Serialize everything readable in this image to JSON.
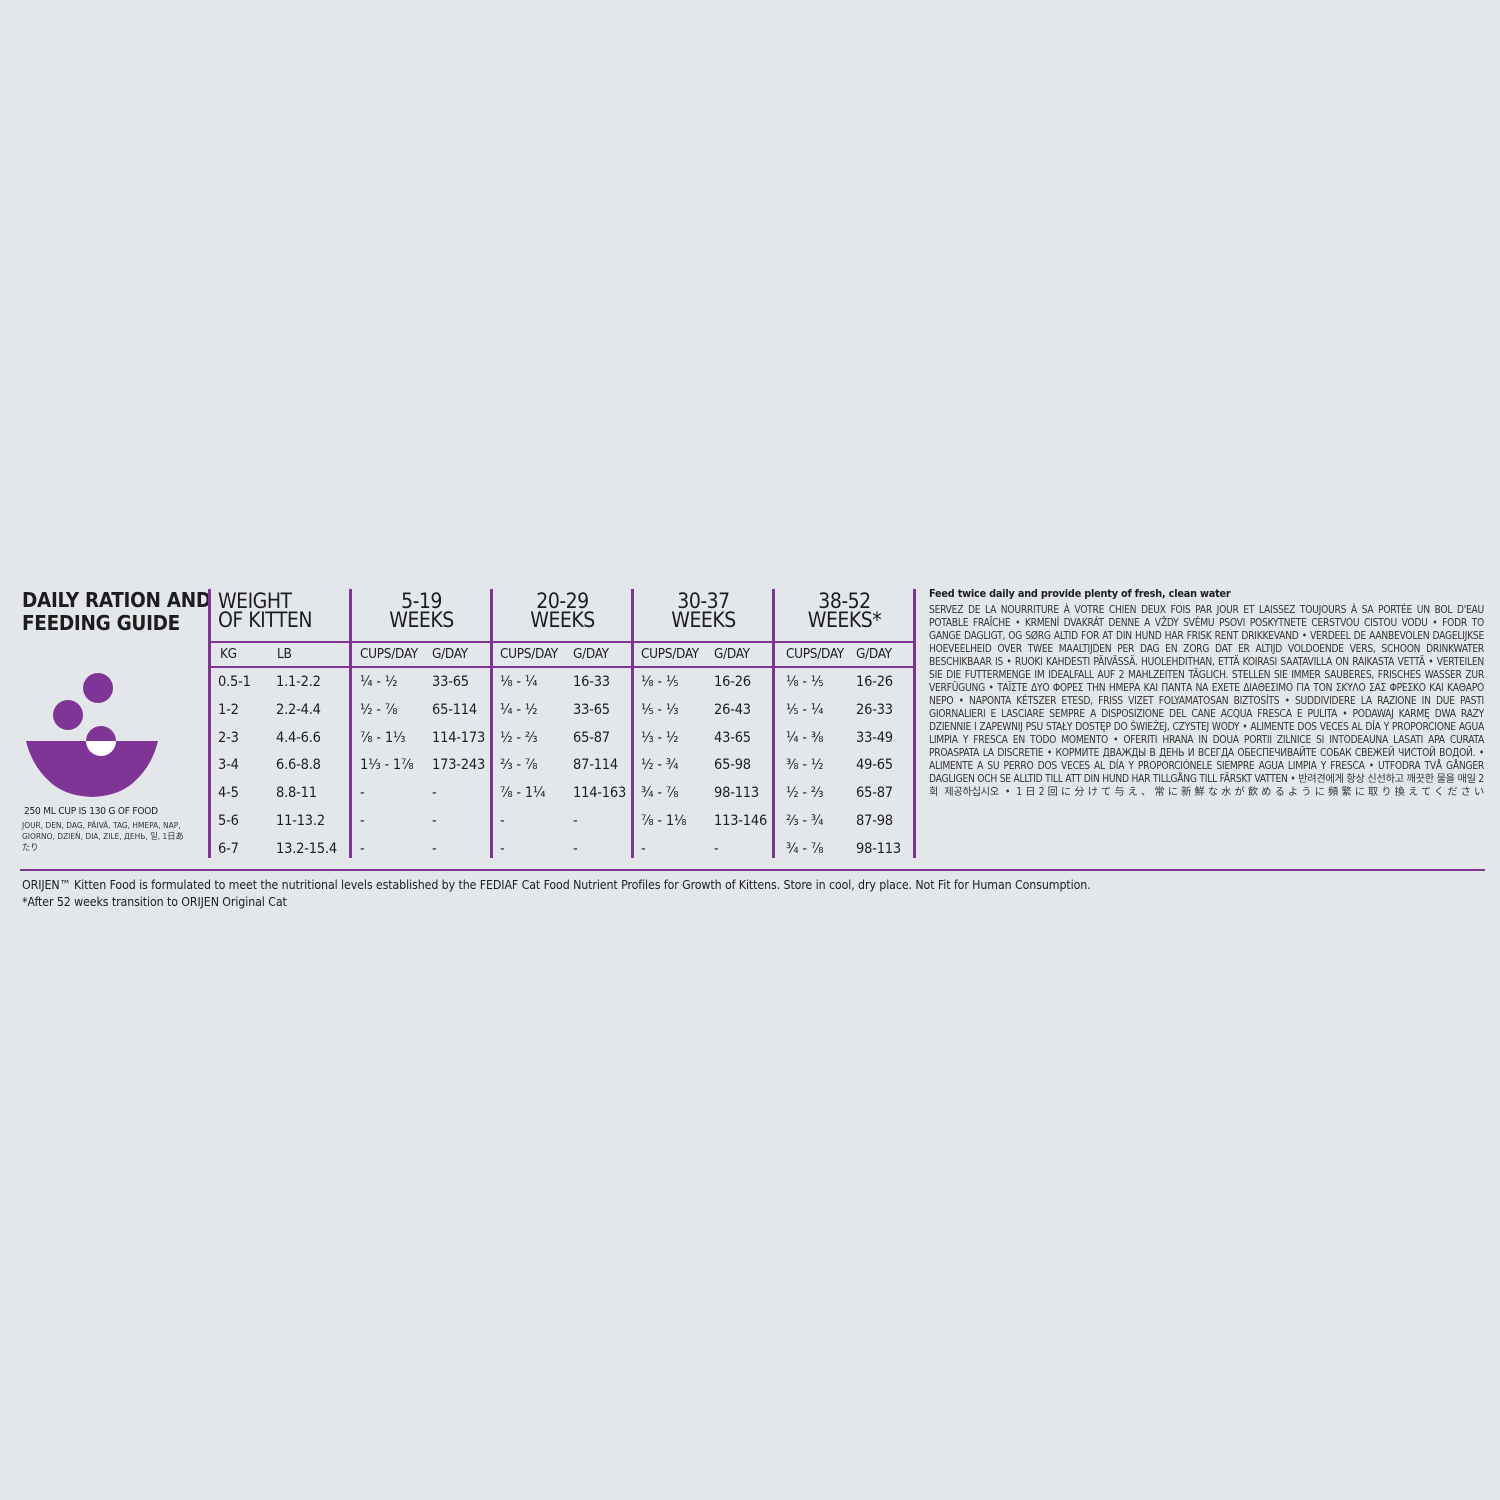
{
  "title": [
    "DAILY RATION AND",
    "FEEDING GUIDE"
  ],
  "accent_color": "#7f3596",
  "icon": "bowl-with-food-icon",
  "cup_note": "250 ML CUP IS 130 G OF FOOD",
  "day_words": "JOUR, DEN, DAG, PÄIVÄ, TAG, HMEPA, NAP, GIORNO, DZIEŃ, DIA, ZILE, ДЕНЬ, 일, 1日あたり",
  "weight_header": [
    "WEIGHT",
    "OF KITTEN"
  ],
  "weight_sub": {
    "kg": "KG",
    "lb": "LB"
  },
  "weights": [
    {
      "kg": "0.5-1",
      "lb": "1.1-2.2"
    },
    {
      "kg": "1-2",
      "lb": "2.2-4.4"
    },
    {
      "kg": "2-3",
      "lb": "4.4-6.6"
    },
    {
      "kg": "3-4",
      "lb": "6.6-8.8"
    },
    {
      "kg": "4-5",
      "lb": "8.8-11"
    },
    {
      "kg": "5-6",
      "lb": "11-13.2"
    },
    {
      "kg": "6-7",
      "lb": "13.2-15.4"
    }
  ],
  "sub_labels": {
    "cups": "CUPS/DAY",
    "g": "G/DAY"
  },
  "age_groups": [
    {
      "range": "5-19",
      "unit": "WEEKS",
      "cups": [
        "¼ - ½",
        "½ - ⅞",
        "⅞ - 1⅓",
        "1⅓ - 1⅞",
        "-",
        "-",
        "-"
      ],
      "g": [
        "33-65",
        "65-114",
        "114-173",
        "173-243",
        "-",
        "-",
        "-"
      ]
    },
    {
      "range": "20-29",
      "unit": "WEEKS",
      "cups": [
        "⅛ - ¼",
        "¼ - ½",
        "½ - ⅔",
        "⅔ - ⅞",
        "⅞ - 1¼",
        "-",
        "-"
      ],
      "g": [
        "16-33",
        "33-65",
        "65-87",
        "87-114",
        "114-163",
        "-",
        "-"
      ]
    },
    {
      "range": "30-37",
      "unit": "WEEKS",
      "cups": [
        "⅛ - ⅕",
        "⅕ - ⅓",
        "⅓ - ½",
        "½ - ¾",
        "¾ - ⅞",
        "⅞ - 1⅛",
        "-"
      ],
      "g": [
        "16-26",
        "26-43",
        "43-65",
        "65-98",
        "98-113",
        "113-146",
        "-"
      ]
    },
    {
      "range": "38-52",
      "unit": "WEEKS*",
      "cups": [
        "⅛ - ⅕",
        "⅕ - ¼",
        "¼ - ⅜",
        "⅜ - ½",
        "½ - ⅔",
        "⅔ - ¾",
        "¾ - ⅞"
      ],
      "g": [
        "16-26",
        "26-33",
        "33-49",
        "49-65",
        "65-87",
        "87-98",
        "98-113"
      ]
    }
  ],
  "instructions_title": "Feed twice daily and provide plenty of fresh, clean water",
  "instructions_translations": "SERVEZ DE LA NOURRITURE À VOTRE CHIEN DEUX FOIS PAR JOUR ET LAISSEZ TOUJOURS À SA PORTÉE UN BOL D'EAU POTABLE FRAÎCHE • KRMENÍ DVAKRÁT DENNE A VŽDY SVÉMU PSOVI POSKYTNETE CERSTVOU CISTOU VODU • FODR TO GANGE DAGLIGT, OG SØRG ALTID FOR AT DIN HUND HAR FRISK RENT DRIKKEVAND • VERDEEL DE AANBEVOLEN DAGELIJKSE HOEVEELHEID OVER TWEE MAALTIJDEN PER DAG EN ZORG DAT ER ALTIJD VOLDOENDE VERS, SCHOON DRINKWATER BESCHIKBAAR IS • RUOKI KAHDESTI PÄIVÄSSÄ. HUOLEHDITHAN, ETTÄ KOIRASI SAATAVILLA ON RAIKASTA VETTÄ • VERTEILEN SIE DIE FUTTERMENGE IM IDEALFALL AUF 2 MAHLZEITEN TÄGLICH. STELLEN SIE IMMER SAUBERES, FRISCHES WASSER ZUR VERFÜGUNG • ΤΑΪΣΤΕ ΔΥΟ ΦΟΡΕΣ ΤΗΝ ΗΜΕΡΑ ΚΑΙ ΠΑΝΤΑ ΝΑ ΕΧΕΤΕ ΔΙΑΘΕΣΙΜΟ ΓΙΑ ΤΟΝ ΣΚΥΛΟ ΣΑΣ ΦΡΕΣΚΟ ΚΑΙ ΚΑΘΑΡΟ ΝΕΡΟ • NAPONTA KÉTSZER ETESD, FRISS VIZET FOLYAMATOSAN BIZTOSÍTS • SUDDIVIDERE LA RAZIONE IN DUE PASTI GIORNALIERI E LASCIARE SEMPRE A DISPOSIZIONE DEL CANE ACQUA FRESCA E PULITA • PODAWAJ KARMĘ DWA RAZY DZIENNIE I ZAPEWNIJ PSU STAŁY DOSTĘP DO ŚWIEŻEJ, CZYSTEJ WODY • ALIMENTE DOS VECES AL DÍA Y PROPORCIONE AGUA LIMPIA Y FRESCA EN TODO MOMENTO • OFERITI HRANA IN DOUA PORTII ZILNICE SI INTODEAUNA LASATI APA CURATA PROASPATA LA DISCRETIE • КОРМИТЕ ДВАЖДЫ В ДЕНЬ И ВСЕГДА ОБЕСПЕЧИВАЙТЕ СОБАК СВЕЖЕЙ ЧИСТОЙ ВОДОЙ. • ALIMENTE A SU PERRO DOS VECES AL DÍA Y PROPORCIÓNELE SIEMPRE AGUA LIMPIA Y FRESCA • UTFODRA TVÅ GÅNGER DAGLIGEN OCH SE ALLTID TILL ATT DIN HUND HAR TILLGÅNG TILL FÄRSKT VATTEN • 반려견에게 항상 신선하고 깨끗한 물을 매일 2회 제공하십시오 • 1日2回に分けて与え、常に新鮮な水が飲めるように頻繁に取り換えてください",
  "footer": {
    "statement": "ORIJEN™ Kitten Food is formulated to meet the nutritional levels established by the FEDIAF Cat Food Nutrient Profiles for Growth of Kittens. Store in cool, dry place. Not Fit for Human Consumption.",
    "note": "*After 52 weeks transition to ORIJEN Original Cat"
  }
}
